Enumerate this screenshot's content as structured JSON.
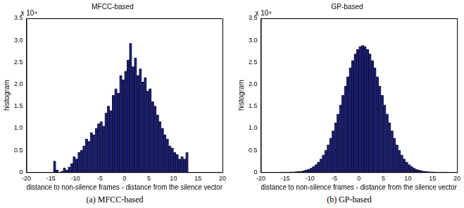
{
  "chart_data": [
    {
      "type": "histogram",
      "title": "MFCC-based",
      "x_label": "distance to non-silence frames - distance from the silence vector",
      "y_label": "histogram",
      "bins": [
        -14.5,
        -14,
        -13.5,
        -13,
        -12.5,
        -12,
        -11.5,
        -11,
        -10.5,
        -10,
        -9.5,
        -9,
        -8.5,
        -8,
        -7.5,
        -7,
        -6.5,
        -6,
        -5.5,
        -5,
        -4.5,
        -4,
        -3.5,
        -3,
        -2.5,
        -2,
        -1.5,
        -1,
        -0.5,
        0,
        0.5,
        1,
        1.5,
        2,
        2.5,
        3,
        3.5,
        4,
        4.5,
        5,
        5.5,
        6,
        6.5,
        7,
        7.5,
        8,
        8.5,
        9,
        9.5,
        10,
        10.5,
        11,
        11.5,
        12,
        12.5,
        13
      ],
      "values": [
        0.25,
        0.05,
        0,
        0.02,
        0.1,
        0.05,
        0.12,
        0.2,
        0.35,
        0.3,
        0.45,
        0.5,
        0.6,
        0.75,
        0.7,
        0.9,
        0.85,
        1.0,
        1.1,
        1.15,
        1.05,
        1.35,
        1.5,
        1.4,
        1.75,
        1.9,
        1.8,
        2.2,
        2.1,
        2.3,
        2.55,
        2.93,
        2.4,
        2.6,
        2.2,
        2.35,
        2.05,
        2.15,
        1.85,
        1.9,
        1.6,
        1.5,
        1.3,
        1.15,
        1.0,
        0.85,
        0.75,
        0.6,
        0.55,
        0.45,
        0.4,
        0.3,
        0.35,
        0.3,
        0.45
      ],
      "color": "#1c1f6e",
      "xlim": [
        -20,
        20
      ],
      "xticks": [
        -20,
        -15,
        -10,
        -5,
        0,
        5,
        10,
        15,
        20
      ],
      "ylim": [
        0,
        3.5
      ],
      "yticks": [
        0,
        0.5,
        1,
        1.5,
        2,
        2.5,
        3,
        3.5
      ],
      "grid": false,
      "annotations": [
        "x 10⁴",
        "(a) MFCC-based"
      ]
    },
    {
      "type": "histogram",
      "title": "GP-based",
      "x_label": "distance to non-silence frames - distance from the silence vector",
      "y_label": "histogram",
      "bins": [
        -16,
        -15.5,
        -15,
        -14.5,
        -14,
        -13.5,
        -13,
        -12.5,
        -12,
        -11.5,
        -11,
        -10.5,
        -10,
        -9.5,
        -9,
        -8.5,
        -8,
        -7.5,
        -7,
        -6.5,
        -6,
        -5.5,
        -5,
        -4.5,
        -4,
        -3.5,
        -3,
        -2.5,
        -2,
        -1.5,
        -1,
        -0.5,
        0,
        0.5,
        1,
        1.5,
        2,
        2.5,
        3,
        3.5,
        4,
        4.5,
        5,
        5.5,
        6,
        6.5,
        7,
        7.5,
        8,
        8.5,
        9,
        9.5,
        10,
        10.5,
        11,
        11.5,
        12,
        12.5,
        13,
        13.5,
        14,
        14.5,
        15,
        15.5,
        16,
        16.5,
        17,
        17.5,
        18
      ],
      "values": [
        0.001,
        0.001,
        0.002,
        0.003,
        0.004,
        0.006,
        0.01,
        0.015,
        0.022,
        0.032,
        0.046,
        0.066,
        0.09,
        0.127,
        0.17,
        0.23,
        0.3,
        0.39,
        0.5,
        0.62,
        0.77,
        0.94,
        1.12,
        1.32,
        1.53,
        1.75,
        1.96,
        2.17,
        2.37,
        2.54,
        2.69,
        2.79,
        2.86,
        2.88,
        2.86,
        2.79,
        2.69,
        2.54,
        2.37,
        2.17,
        1.96,
        1.75,
        1.53,
        1.32,
        1.12,
        0.94,
        0.77,
        0.62,
        0.5,
        0.39,
        0.3,
        0.23,
        0.17,
        0.127,
        0.09,
        0.066,
        0.046,
        0.032,
        0.022,
        0.015,
        0.01,
        0.006,
        0.004,
        0.003,
        0.002,
        0.001,
        0.001,
        0.001
      ],
      "color": "#1c1f6e",
      "xlim": [
        -20,
        20
      ],
      "xticks": [
        -20,
        -15,
        -10,
        -5,
        0,
        5,
        10,
        15,
        20
      ],
      "ylim": [
        0,
        3.5
      ],
      "yticks": [
        0,
        0.5,
        1,
        1.5,
        2,
        2.5,
        3,
        3.5
      ],
      "grid": false,
      "annotations": [
        "x 10⁴",
        "(b) GP-based"
      ]
    }
  ]
}
